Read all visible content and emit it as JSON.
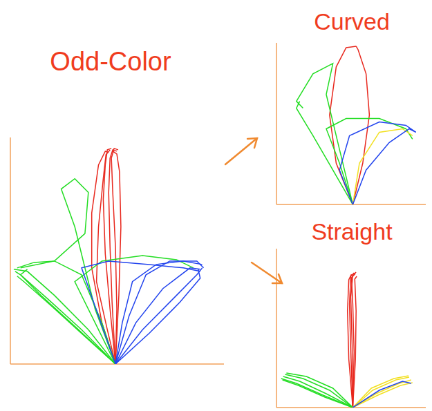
{
  "chart_data": [
    {
      "type": "line",
      "title": "Odd-Color",
      "xlim": [
        -155,
        160
      ],
      "ylim": [
        0,
        330
      ],
      "tick_labels": false,
      "series": [
        {
          "color": "#e8281e",
          "x": [
            0,
            -8,
            -15,
            -18,
            -15,
            -12,
            -6
          ],
          "y": [
            0,
            80,
            160,
            240,
            290,
            312,
            314
          ]
        },
        {
          "color": "#e8281e",
          "x": [
            0,
            -5,
            -8,
            -10,
            -8,
            -4,
            2
          ],
          "y": [
            0,
            90,
            170,
            250,
            300,
            312,
            310
          ]
        },
        {
          "color": "#e8281e",
          "x": [
            0,
            2,
            0,
            -4,
            -6,
            -2,
            4
          ],
          "y": [
            0,
            80,
            170,
            250,
            300,
            314,
            312
          ]
        },
        {
          "color": "#e8281e",
          "x": [
            0,
            -20,
            -35,
            -35,
            -25,
            -15,
            -10
          ],
          "y": [
            0,
            60,
            140,
            220,
            290,
            310,
            308
          ]
        },
        {
          "color": "#e8281e",
          "x": [
            0,
            5,
            8,
            6,
            2,
            -4
          ],
          "y": [
            0,
            100,
            200,
            280,
            306,
            310
          ]
        },
        {
          "color": "#e8281e",
          "x": [
            0,
            -12,
            -28,
            -25,
            -18,
            -14,
            -8
          ],
          "y": [
            0,
            50,
            120,
            200,
            270,
            305,
            312
          ]
        },
        {
          "color": "#22dd22",
          "x": [
            0,
            -50,
            -100,
            -140,
            -148
          ],
          "y": [
            0,
            50,
            95,
            130,
            135
          ]
        },
        {
          "color": "#22dd22",
          "x": [
            0,
            -45,
            -95,
            -135,
            -145
          ],
          "y": [
            0,
            40,
            85,
            120,
            128
          ]
        },
        {
          "color": "#22dd22",
          "x": [
            0,
            -60,
            -110,
            -140,
            -130
          ],
          "y": [
            0,
            55,
            100,
            130,
            138
          ]
        },
        {
          "color": "#22dd22",
          "x": [
            0,
            -40,
            -90,
            -130,
            -150
          ],
          "y": [
            0,
            50,
            100,
            135,
            138
          ]
        },
        {
          "color": "#22dd22",
          "x": [
            0,
            -30,
            -60,
            -80,
            -60,
            -40,
            -45,
            -90,
            -140
          ],
          "y": [
            0,
            80,
            200,
            255,
            270,
            250,
            190,
            150,
            140
          ]
        },
        {
          "color": "#22dd22",
          "x": [
            0,
            -20,
            -50,
            -90,
            -120,
            -145
          ],
          "y": [
            0,
            60,
            130,
            150,
            148,
            140
          ]
        },
        {
          "color": "#22dd22",
          "x": [
            0,
            -30,
            -60,
            -20,
            40,
            90,
            115
          ],
          "y": [
            0,
            60,
            120,
            150,
            158,
            152,
            140
          ]
        },
        {
          "color": "#2244ee",
          "x": [
            0,
            40,
            90,
            120,
            128
          ],
          "y": [
            0,
            50,
            100,
            130,
            140
          ]
        },
        {
          "color": "#2244ee",
          "x": [
            0,
            50,
            95,
            125,
            122
          ],
          "y": [
            0,
            45,
            90,
            125,
            138
          ]
        },
        {
          "color": "#2244ee",
          "x": [
            0,
            30,
            70,
            110,
            125
          ],
          "y": [
            0,
            60,
            110,
            140,
            138
          ]
        },
        {
          "color": "#2244ee",
          "x": [
            0,
            20,
            45,
            80,
            120,
            130
          ],
          "y": [
            0,
            70,
            130,
            150,
            150,
            140
          ]
        },
        {
          "color": "#2244ee",
          "x": [
            0,
            -25,
            -50,
            -10,
            50,
            100,
            125
          ],
          "y": [
            0,
            70,
            140,
            150,
            145,
            140,
            135
          ]
        },
        {
          "color": "#2244ee",
          "x": [
            0,
            10,
            25,
            60,
            100,
            128
          ],
          "y": [
            0,
            60,
            120,
            145,
            150,
            145
          ]
        }
      ]
    },
    {
      "type": "line",
      "title": "Curved",
      "xlim": [
        -115,
        110
      ],
      "ylim": [
        0,
        235
      ],
      "tick_labels": false,
      "series": [
        {
          "color": "#e8281e",
          "x": [
            0,
            -25,
            -35,
            -25,
            -10,
            5
          ],
          "y": [
            0,
            60,
            130,
            200,
            228,
            230
          ]
        },
        {
          "color": "#e8281e",
          "x": [
            0,
            15,
            25,
            20,
            8,
            5
          ],
          "y": [
            0,
            60,
            130,
            190,
            225,
            230
          ]
        },
        {
          "color": "#22dd22",
          "x": [
            0,
            -30,
            -60,
            -85,
            -80
          ],
          "y": [
            0,
            50,
            100,
            140,
            150
          ]
        },
        {
          "color": "#22dd22",
          "x": [
            0,
            -20,
            -40,
            -30,
            -60,
            -85,
            -75
          ],
          "y": [
            0,
            80,
            160,
            205,
            190,
            150,
            140
          ]
        },
        {
          "color": "#22dd22",
          "x": [
            0,
            -20,
            -40,
            -10,
            40,
            80,
            90
          ],
          "y": [
            0,
            60,
            110,
            125,
            125,
            110,
            95
          ]
        },
        {
          "color": "#f2e021",
          "x": [
            0,
            10,
            40,
            75,
            90
          ],
          "y": [
            0,
            60,
            105,
            110,
            100
          ]
        },
        {
          "color": "#2244ee",
          "x": [
            0,
            20,
            55,
            85,
            95
          ],
          "y": [
            0,
            50,
            90,
            110,
            105
          ]
        },
        {
          "color": "#2244ee",
          "x": [
            0,
            -20,
            -5,
            40,
            80,
            95
          ],
          "y": [
            0,
            50,
            100,
            120,
            115,
            105
          ]
        }
      ]
    },
    {
      "type": "line",
      "title": "Straight",
      "xlim": [
        -115,
        110
      ],
      "ylim": [
        0,
        230
      ],
      "tick_labels": false,
      "series": [
        {
          "color": "#e8281e",
          "x": [
            0,
            -3,
            -5,
            -3,
            2
          ],
          "y": [
            0,
            80,
            150,
            190,
            195
          ]
        },
        {
          "color": "#e8281e",
          "x": [
            0,
            2,
            0,
            -2,
            4
          ],
          "y": [
            0,
            80,
            150,
            188,
            194
          ]
        },
        {
          "color": "#e8281e",
          "x": [
            0,
            -6,
            -8,
            -6,
            -2
          ],
          "y": [
            0,
            70,
            140,
            185,
            193
          ]
        },
        {
          "color": "#e8281e",
          "x": [
            0,
            4,
            5,
            3,
            6
          ],
          "y": [
            0,
            70,
            140,
            186,
            190
          ]
        },
        {
          "color": "#e8281e",
          "x": [
            0,
            -1,
            -3,
            0,
            5
          ],
          "y": [
            0,
            90,
            160,
            192,
            196
          ]
        },
        {
          "color": "#22dd22",
          "x": [
            0,
            -40,
            -80,
            -105
          ],
          "y": [
            0,
            20,
            38,
            45
          ]
        },
        {
          "color": "#22dd22",
          "x": [
            0,
            -35,
            -75,
            -102
          ],
          "y": [
            0,
            25,
            42,
            48
          ]
        },
        {
          "color": "#22dd22",
          "x": [
            0,
            -45,
            -85,
            -108
          ],
          "y": [
            0,
            18,
            35,
            42
          ]
        },
        {
          "color": "#22dd22",
          "x": [
            0,
            -30,
            -70,
            -100
          ],
          "y": [
            0,
            28,
            45,
            50
          ]
        },
        {
          "color": "#22dd22",
          "x": [
            0,
            -42,
            -82,
            -106
          ],
          "y": [
            0,
            15,
            32,
            40
          ]
        },
        {
          "color": "#f2e021",
          "x": [
            0,
            35,
            70,
            88
          ],
          "y": [
            0,
            20,
            35,
            40
          ]
        },
        {
          "color": "#f2e021",
          "x": [
            0,
            30,
            65,
            85
          ],
          "y": [
            0,
            25,
            40,
            44
          ]
        },
        {
          "color": "#f2e021",
          "x": [
            0,
            38,
            72,
            90
          ],
          "y": [
            0,
            18,
            32,
            36
          ]
        },
        {
          "color": "#f2e021",
          "x": [
            0,
            28,
            62,
            84
          ],
          "y": [
            0,
            28,
            42,
            46
          ]
        },
        {
          "color": "#2244ee",
          "x": [
            0,
            40,
            75,
            88
          ],
          "y": [
            0,
            25,
            38,
            35
          ]
        }
      ]
    }
  ]
}
